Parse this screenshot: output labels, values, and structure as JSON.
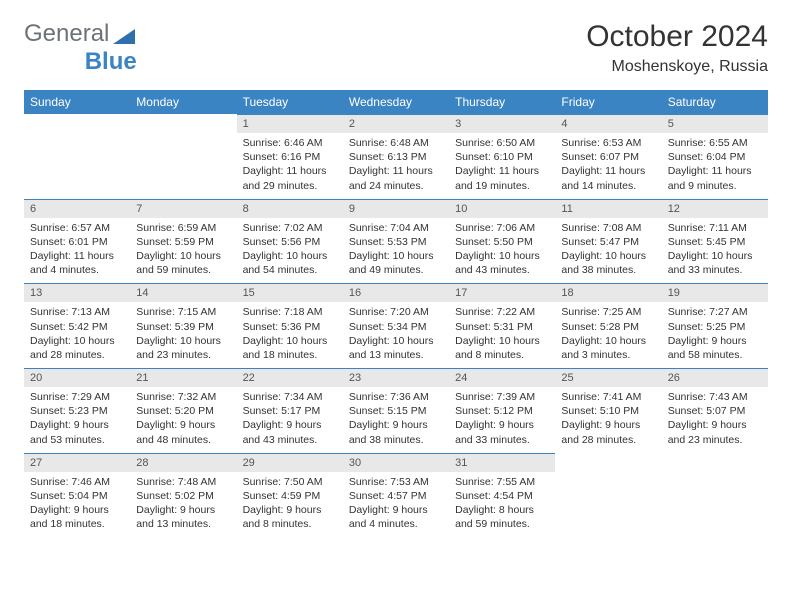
{
  "brand": {
    "part1": "General",
    "part2": "Blue"
  },
  "title": "October 2024",
  "location": "Moshenskoye, Russia",
  "colors": {
    "header_bg": "#3b84c4",
    "header_text": "#ffffff",
    "dayhead_bg": "#e8e8e9",
    "text": "#333333",
    "border": "#3b84c4"
  },
  "dayNames": [
    "Sunday",
    "Monday",
    "Tuesday",
    "Wednesday",
    "Thursday",
    "Friday",
    "Saturday"
  ],
  "weeks": [
    [
      null,
      null,
      {
        "n": "1",
        "sr": "Sunrise: 6:46 AM",
        "ss": "Sunset: 6:16 PM",
        "dl": "Daylight: 11 hours and 29 minutes."
      },
      {
        "n": "2",
        "sr": "Sunrise: 6:48 AM",
        "ss": "Sunset: 6:13 PM",
        "dl": "Daylight: 11 hours and 24 minutes."
      },
      {
        "n": "3",
        "sr": "Sunrise: 6:50 AM",
        "ss": "Sunset: 6:10 PM",
        "dl": "Daylight: 11 hours and 19 minutes."
      },
      {
        "n": "4",
        "sr": "Sunrise: 6:53 AM",
        "ss": "Sunset: 6:07 PM",
        "dl": "Daylight: 11 hours and 14 minutes."
      },
      {
        "n": "5",
        "sr": "Sunrise: 6:55 AM",
        "ss": "Sunset: 6:04 PM",
        "dl": "Daylight: 11 hours and 9 minutes."
      }
    ],
    [
      {
        "n": "6",
        "sr": "Sunrise: 6:57 AM",
        "ss": "Sunset: 6:01 PM",
        "dl": "Daylight: 11 hours and 4 minutes."
      },
      {
        "n": "7",
        "sr": "Sunrise: 6:59 AM",
        "ss": "Sunset: 5:59 PM",
        "dl": "Daylight: 10 hours and 59 minutes."
      },
      {
        "n": "8",
        "sr": "Sunrise: 7:02 AM",
        "ss": "Sunset: 5:56 PM",
        "dl": "Daylight: 10 hours and 54 minutes."
      },
      {
        "n": "9",
        "sr": "Sunrise: 7:04 AM",
        "ss": "Sunset: 5:53 PM",
        "dl": "Daylight: 10 hours and 49 minutes."
      },
      {
        "n": "10",
        "sr": "Sunrise: 7:06 AM",
        "ss": "Sunset: 5:50 PM",
        "dl": "Daylight: 10 hours and 43 minutes."
      },
      {
        "n": "11",
        "sr": "Sunrise: 7:08 AM",
        "ss": "Sunset: 5:47 PM",
        "dl": "Daylight: 10 hours and 38 minutes."
      },
      {
        "n": "12",
        "sr": "Sunrise: 7:11 AM",
        "ss": "Sunset: 5:45 PM",
        "dl": "Daylight: 10 hours and 33 minutes."
      }
    ],
    [
      {
        "n": "13",
        "sr": "Sunrise: 7:13 AM",
        "ss": "Sunset: 5:42 PM",
        "dl": "Daylight: 10 hours and 28 minutes."
      },
      {
        "n": "14",
        "sr": "Sunrise: 7:15 AM",
        "ss": "Sunset: 5:39 PM",
        "dl": "Daylight: 10 hours and 23 minutes."
      },
      {
        "n": "15",
        "sr": "Sunrise: 7:18 AM",
        "ss": "Sunset: 5:36 PM",
        "dl": "Daylight: 10 hours and 18 minutes."
      },
      {
        "n": "16",
        "sr": "Sunrise: 7:20 AM",
        "ss": "Sunset: 5:34 PM",
        "dl": "Daylight: 10 hours and 13 minutes."
      },
      {
        "n": "17",
        "sr": "Sunrise: 7:22 AM",
        "ss": "Sunset: 5:31 PM",
        "dl": "Daylight: 10 hours and 8 minutes."
      },
      {
        "n": "18",
        "sr": "Sunrise: 7:25 AM",
        "ss": "Sunset: 5:28 PM",
        "dl": "Daylight: 10 hours and 3 minutes."
      },
      {
        "n": "19",
        "sr": "Sunrise: 7:27 AM",
        "ss": "Sunset: 5:25 PM",
        "dl": "Daylight: 9 hours and 58 minutes."
      }
    ],
    [
      {
        "n": "20",
        "sr": "Sunrise: 7:29 AM",
        "ss": "Sunset: 5:23 PM",
        "dl": "Daylight: 9 hours and 53 minutes."
      },
      {
        "n": "21",
        "sr": "Sunrise: 7:32 AM",
        "ss": "Sunset: 5:20 PM",
        "dl": "Daylight: 9 hours and 48 minutes."
      },
      {
        "n": "22",
        "sr": "Sunrise: 7:34 AM",
        "ss": "Sunset: 5:17 PM",
        "dl": "Daylight: 9 hours and 43 minutes."
      },
      {
        "n": "23",
        "sr": "Sunrise: 7:36 AM",
        "ss": "Sunset: 5:15 PM",
        "dl": "Daylight: 9 hours and 38 minutes."
      },
      {
        "n": "24",
        "sr": "Sunrise: 7:39 AM",
        "ss": "Sunset: 5:12 PM",
        "dl": "Daylight: 9 hours and 33 minutes."
      },
      {
        "n": "25",
        "sr": "Sunrise: 7:41 AM",
        "ss": "Sunset: 5:10 PM",
        "dl": "Daylight: 9 hours and 28 minutes."
      },
      {
        "n": "26",
        "sr": "Sunrise: 7:43 AM",
        "ss": "Sunset: 5:07 PM",
        "dl": "Daylight: 9 hours and 23 minutes."
      }
    ],
    [
      {
        "n": "27",
        "sr": "Sunrise: 7:46 AM",
        "ss": "Sunset: 5:04 PM",
        "dl": "Daylight: 9 hours and 18 minutes."
      },
      {
        "n": "28",
        "sr": "Sunrise: 7:48 AM",
        "ss": "Sunset: 5:02 PM",
        "dl": "Daylight: 9 hours and 13 minutes."
      },
      {
        "n": "29",
        "sr": "Sunrise: 7:50 AM",
        "ss": "Sunset: 4:59 PM",
        "dl": "Daylight: 9 hours and 8 minutes."
      },
      {
        "n": "30",
        "sr": "Sunrise: 7:53 AM",
        "ss": "Sunset: 4:57 PM",
        "dl": "Daylight: 9 hours and 4 minutes."
      },
      {
        "n": "31",
        "sr": "Sunrise: 7:55 AM",
        "ss": "Sunset: 4:54 PM",
        "dl": "Daylight: 8 hours and 59 minutes."
      },
      null,
      null
    ]
  ]
}
